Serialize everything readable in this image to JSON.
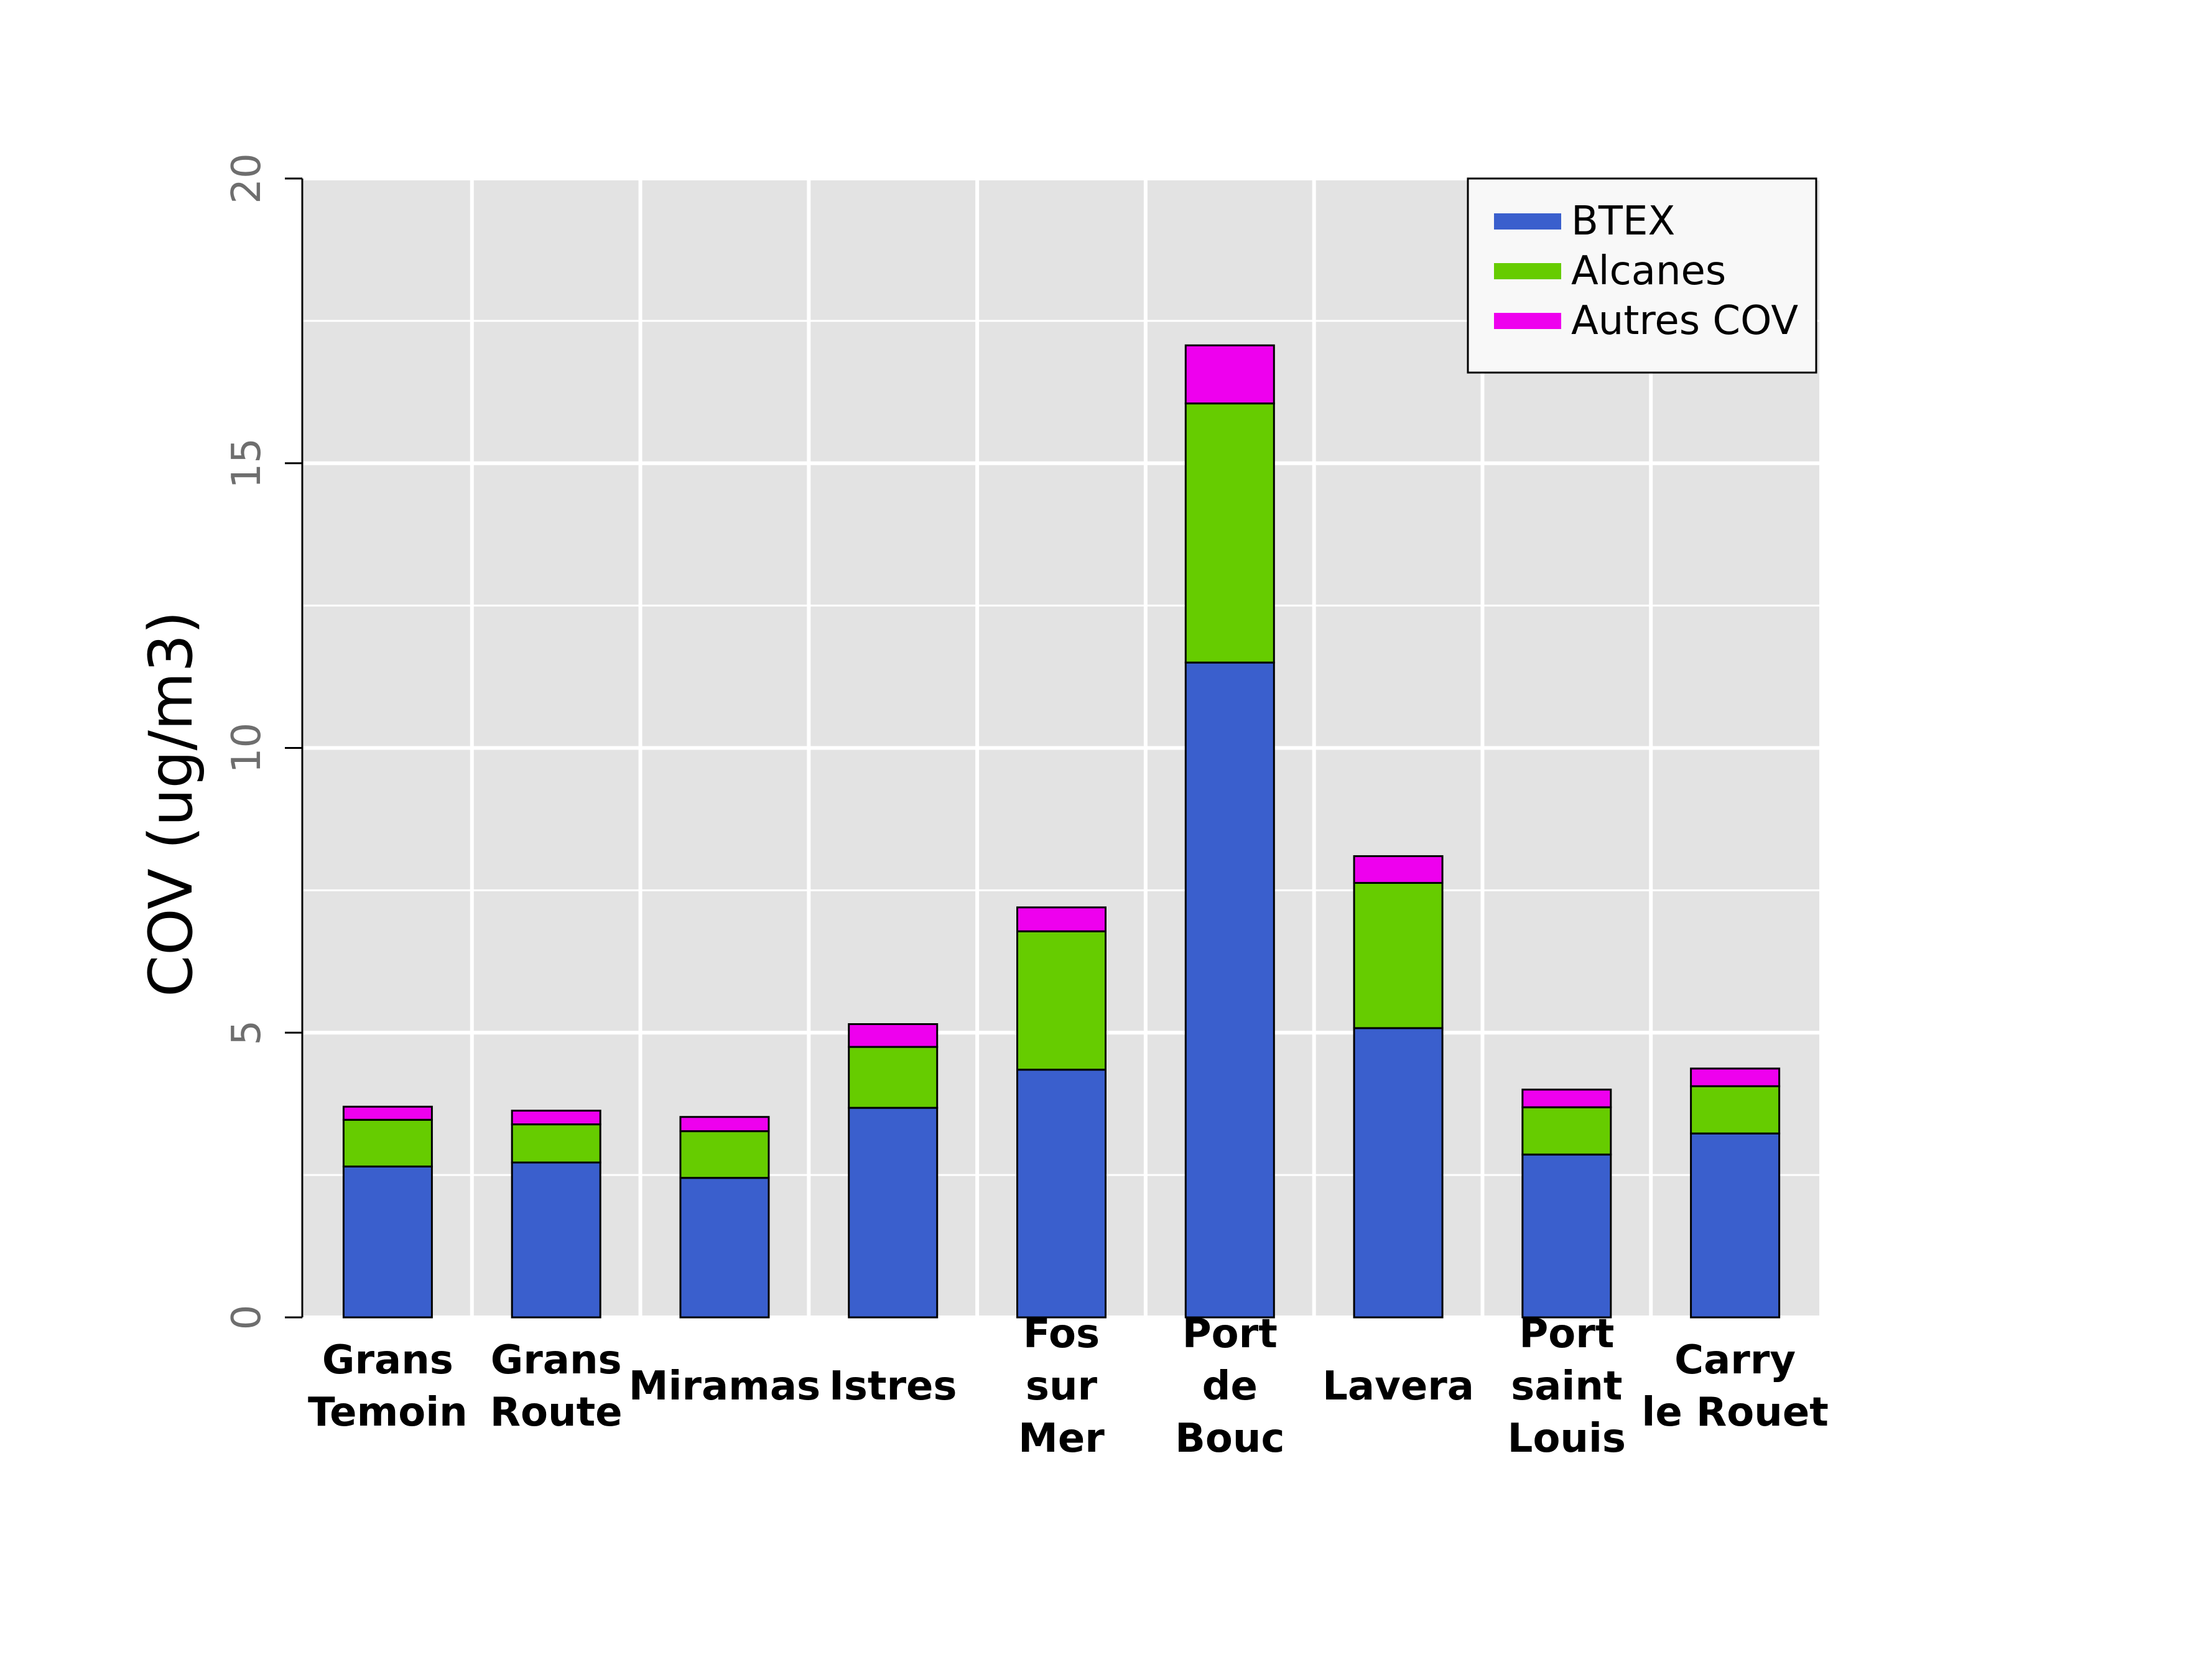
{
  "chart_data": {
    "type": "bar",
    "stacked": true,
    "title": "",
    "xlabel": "",
    "ylabel": "COV (ug/m3)",
    "ylim": [
      0,
      20
    ],
    "yticks": [
      "0",
      "5",
      "10",
      "15",
      "20"
    ],
    "grid": true,
    "legend_position": "top-right",
    "categories": [
      [
        "Grans",
        "Temoin"
      ],
      [
        "Grans",
        "Route"
      ],
      [
        "Miramas"
      ],
      [
        "Istres"
      ],
      [
        "Fos",
        "sur",
        "Mer"
      ],
      [
        "Port",
        "de",
        "Bouc"
      ],
      [
        "Lavera"
      ],
      [
        "Port",
        "saint",
        "Louis"
      ],
      [
        "Carry",
        "le Rouet"
      ]
    ],
    "series": [
      {
        "name": "BTEX",
        "color": "#3a5fcd",
        "values": [
          2.65,
          2.72,
          2.45,
          3.68,
          4.35,
          11.5,
          5.08,
          2.86,
          3.23
        ]
      },
      {
        "name": "Alcanes",
        "color": "#66cc00",
        "values": [
          0.82,
          0.67,
          0.82,
          1.07,
          2.43,
          4.55,
          2.55,
          0.83,
          0.83
        ]
      },
      {
        "name": "Autres COV",
        "color": "#ee00ee",
        "values": [
          0.23,
          0.24,
          0.25,
          0.4,
          0.42,
          1.02,
          0.47,
          0.31,
          0.31
        ]
      }
    ]
  }
}
